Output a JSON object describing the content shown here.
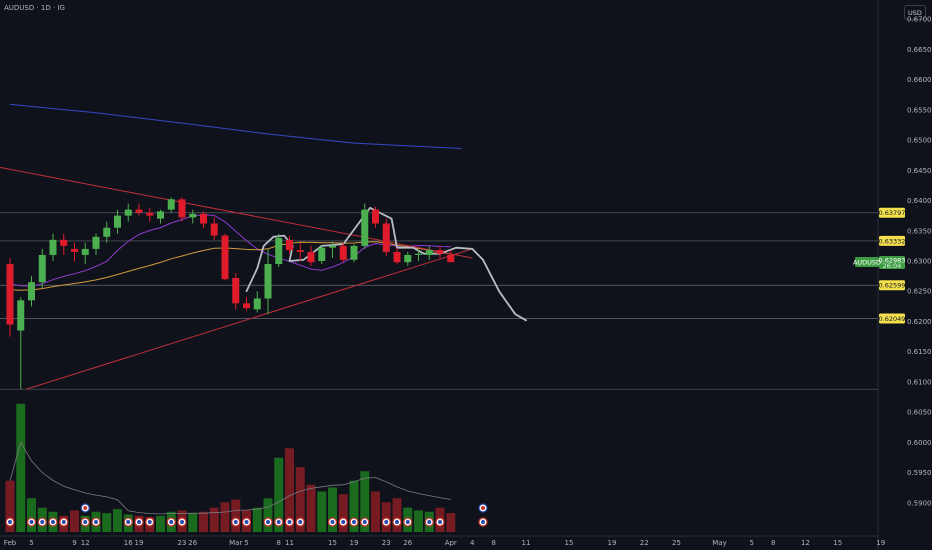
{
  "header": {
    "symbol": "AUDUSD · 1D · IG",
    "currency": "USD"
  },
  "colors": {
    "background": "#0f121a",
    "up": "#4caf50",
    "down": "#e01c2c",
    "volume_up": "#1b6b1e",
    "volume_down": "#761b22",
    "sma_long": "#3947c7",
    "sma_mid": "#8e3bd1",
    "sma_short": "#d39a3a",
    "trendline": "#c0303a",
    "level": "#8c8f96",
    "sketch": "#b8bcc4",
    "volume_ma": "#7a7d84"
  },
  "chart_data": {
    "type": "candlestick",
    "y_ticks": [
      "0.67000",
      "0.66500",
      "0.66000",
      "0.65500",
      "0.65000",
      "0.64500",
      "0.64000",
      "0.63500",
      "0.63000",
      "0.62500",
      "0.62000",
      "0.61500",
      "0.61000",
      "0.60500",
      "0.60000",
      "0.59500",
      "0.59000"
    ],
    "ylim": [
      0.5885,
      0.6715
    ],
    "x_ticks": [
      {
        "label": "Feb",
        "i": 0
      },
      {
        "label": "5",
        "i": 2
      },
      {
        "label": "9",
        "i": 6
      },
      {
        "label": "12",
        "i": 7
      },
      {
        "label": "16",
        "i": 11
      },
      {
        "label": "19",
        "i": 12
      },
      {
        "label": "23",
        "i": 16
      },
      {
        "label": "26",
        "i": 17
      },
      {
        "label": "Mar",
        "i": 21
      },
      {
        "label": "5",
        "i": 22
      },
      {
        "label": "8",
        "i": 25
      },
      {
        "label": "11",
        "i": 26
      },
      {
        "label": "15",
        "i": 30
      },
      {
        "label": "19",
        "i": 32
      },
      {
        "label": "23",
        "i": 35
      },
      {
        "label": "26",
        "i": 37
      },
      {
        "label": "Apr",
        "i": 41
      },
      {
        "label": "4",
        "i": 43
      },
      {
        "label": "8",
        "i": 45
      },
      {
        "label": "11",
        "i": 48
      },
      {
        "label": "15",
        "i": 52
      },
      {
        "label": "19",
        "i": 56
      },
      {
        "label": "22",
        "i": 59
      },
      {
        "label": "25",
        "i": 62
      },
      {
        "label": "May",
        "i": 66
      },
      {
        "label": "5",
        "i": 69
      },
      {
        "label": "8",
        "i": 71
      },
      {
        "label": "12",
        "i": 74
      },
      {
        "label": "15",
        "i": 77
      },
      {
        "label": "19",
        "i": 81
      }
    ],
    "candles": [
      [
        0.6295,
        0.6305,
        0.6175,
        0.6195
      ],
      [
        0.6185,
        0.624,
        0.6088,
        0.6235
      ],
      [
        0.6235,
        0.6275,
        0.6225,
        0.6265
      ],
      [
        0.6265,
        0.632,
        0.6255,
        0.631
      ],
      [
        0.631,
        0.6345,
        0.63,
        0.6335
      ],
      [
        0.6335,
        0.6345,
        0.631,
        0.6325
      ],
      [
        0.632,
        0.633,
        0.63,
        0.6315
      ],
      [
        0.631,
        0.633,
        0.6295,
        0.632
      ],
      [
        0.632,
        0.6345,
        0.631,
        0.634
      ],
      [
        0.634,
        0.6365,
        0.633,
        0.6355
      ],
      [
        0.6355,
        0.6385,
        0.6345,
        0.6375
      ],
      [
        0.6375,
        0.6395,
        0.6365,
        0.6385
      ],
      [
        0.6385,
        0.6395,
        0.6375,
        0.638
      ],
      [
        0.638,
        0.6388,
        0.6365,
        0.6375
      ],
      [
        0.637,
        0.6385,
        0.6362,
        0.6382
      ],
      [
        0.6385,
        0.6405,
        0.638,
        0.6402
      ],
      [
        0.6402,
        0.6405,
        0.6365,
        0.6372
      ],
      [
        0.6372,
        0.6385,
        0.6362,
        0.6378
      ],
      [
        0.6378,
        0.6382,
        0.6355,
        0.6362
      ],
      [
        0.6362,
        0.6372,
        0.6335,
        0.6342
      ],
      [
        0.6342,
        0.6345,
        0.6268,
        0.627
      ],
      [
        0.6272,
        0.628,
        0.622,
        0.623
      ],
      [
        0.623,
        0.624,
        0.6218,
        0.6222
      ],
      [
        0.622,
        0.625,
        0.6215,
        0.6238
      ],
      [
        0.6238,
        0.632,
        0.6212,
        0.6295
      ],
      [
        0.6295,
        0.6345,
        0.629,
        0.6338
      ],
      [
        0.6335,
        0.6342,
        0.6312,
        0.6318
      ],
      [
        0.6318,
        0.633,
        0.63,
        0.6315
      ],
      [
        0.6315,
        0.6325,
        0.6292,
        0.6298
      ],
      [
        0.63,
        0.6325,
        0.6295,
        0.6322
      ],
      [
        0.6322,
        0.6332,
        0.6305,
        0.6325
      ],
      [
        0.6325,
        0.633,
        0.6298,
        0.6302
      ],
      [
        0.6302,
        0.6328,
        0.6298,
        0.6325
      ],
      [
        0.6325,
        0.6395,
        0.632,
        0.6385
      ],
      [
        0.6385,
        0.639,
        0.6355,
        0.6362
      ],
      [
        0.6362,
        0.637,
        0.6308,
        0.6315
      ],
      [
        0.6315,
        0.6322,
        0.6295,
        0.6298
      ],
      [
        0.6298,
        0.6315,
        0.6292,
        0.631
      ],
      [
        0.631,
        0.6318,
        0.63,
        0.6312
      ],
      [
        0.631,
        0.6325,
        0.6302,
        0.6318
      ],
      [
        0.6318,
        0.6325,
        0.6305,
        0.6312
      ],
      [
        0.631,
        0.6318,
        0.63,
        0.6298
      ]
    ],
    "volume_max": 1.0,
    "volumes": [
      0.38,
      0.95,
      0.25,
      0.18,
      0.15,
      0.12,
      0.16,
      0.12,
      0.15,
      0.14,
      0.17,
      0.13,
      0.12,
      0.11,
      0.12,
      0.15,
      0.16,
      0.14,
      0.15,
      0.18,
      0.22,
      0.24,
      0.16,
      0.18,
      0.25,
      0.55,
      0.62,
      0.48,
      0.35,
      0.3,
      0.33,
      0.28,
      0.38,
      0.45,
      0.3,
      0.22,
      0.25,
      0.18,
      0.16,
      0.15,
      0.18,
      0.14
    ],
    "hlines": [
      {
        "price": 0.63797,
        "label": "0.63797",
        "style": "yellow"
      },
      {
        "price": 0.63332,
        "label": "0.63332",
        "style": "yellow"
      },
      {
        "price": 0.62599,
        "label": "0.62599",
        "style": "yellow"
      },
      {
        "price": 0.62049,
        "label": "0.62049",
        "style": "yellow"
      }
    ],
    "current_price": {
      "price": 0.62983,
      "label": "0.62983",
      "symbol": "AUDUSD",
      "timer": "26:04"
    }
  }
}
